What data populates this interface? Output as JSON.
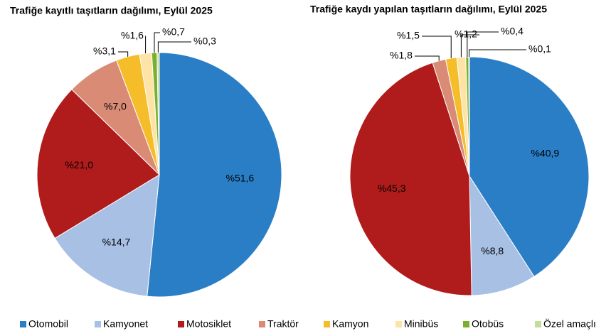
{
  "chart_data": [
    {
      "type": "pie",
      "title": "Trafiğe kayıtlı taşıtların dağılımı, Eylül 2025",
      "categories": [
        "Otomobil",
        "Kamyonet",
        "Motosiklet",
        "Traktör",
        "Kamyon",
        "Minibüs",
        "Otobüs",
        "Özel amaçlı"
      ],
      "values": [
        51.6,
        14.7,
        21.0,
        7.0,
        3.1,
        1.6,
        0.7,
        0.3
      ],
      "value_labels": [
        "%51,6",
        "%14,7",
        "%21,0",
        "%7,0",
        "%3,1",
        "%1,6",
        "%0,7",
        "%0,3"
      ],
      "colors": [
        "#2a7ec6",
        "#a7c0e4",
        "#b01b1b",
        "#d98b76",
        "#f6bd2a",
        "#fde3a5",
        "#7bb02c",
        "#c5dd9b"
      ]
    },
    {
      "type": "pie",
      "title": "Trafiğe kaydı yapılan taşıtların dağılımı, Eylül 2025",
      "categories": [
        "Otomobil",
        "Kamyonet",
        "Motosiklet",
        "Traktör",
        "Kamyon",
        "Minibüs",
        "Otobüs",
        "Özel amaçlı"
      ],
      "values": [
        40.9,
        8.8,
        45.3,
        1.8,
        1.5,
        1.2,
        0.4,
        0.1
      ],
      "value_labels": [
        "%40,9",
        "%8,8",
        "%45,3",
        "%1,8",
        "%1,5",
        "%1,2",
        "%0,4",
        "%0,1"
      ],
      "colors": [
        "#2a7ec6",
        "#a7c0e4",
        "#b01b1b",
        "#d98b76",
        "#f6bd2a",
        "#fde3a5",
        "#7bb02c",
        "#c5dd9b"
      ]
    }
  ]
}
